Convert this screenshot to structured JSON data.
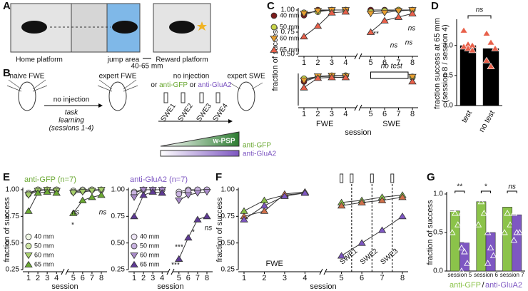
{
  "figure": {
    "panel_labels": [
      "A",
      "B",
      "C",
      "D",
      "E",
      "F",
      "G"
    ],
    "a": {
      "home": "Home platform",
      "jump": "jump area",
      "gap": "40-65 mm",
      "reward": "Reward platform"
    },
    "b": {
      "naive": "naive FWE",
      "expert": "expert FWE",
      "arrow_label": "no injection",
      "task_learning": [
        "task",
        "learning",
        "(sessions 1-4)"
      ],
      "injection": "no injection",
      "or1": "or ",
      "gfp": "anti-GFP",
      "or2": " or ",
      "glua2": "anti-GluA2",
      "expert_swe": "expert SWE",
      "swe": [
        "SWE1",
        "SWE2",
        "SWE3",
        "SWE4"
      ],
      "wpsp": "w-PSP",
      "bar_gfp": "anti-GFP",
      "bar_glua2": "anti-GluA2"
    }
  },
  "chart_data": [
    {
      "type": "line",
      "ylabel": "fraction of success",
      "legend": "outside left",
      "x": [
        1,
        2,
        3,
        4,
        5,
        6,
        7,
        8
      ],
      "xticks": [
        1,
        2,
        3,
        4,
        5,
        6,
        7,
        8
      ],
      "ylim": [
        0.5,
        1.0
      ],
      "yticks": [
        {
          "value": 0.5,
          "label": "0.50"
        },
        {
          "value": 0.75,
          "label": "0.75"
        },
        {
          "value": 1.0,
          "label": "1.00"
        }
      ],
      "series": [
        {
          "name": "40 mm",
          "color": "#7b1c1c",
          "marker": "circle",
          "values": [
            0.94,
            1.0,
            1.0,
            1.0,
            1.0,
            1.0,
            1.0,
            1.0
          ]
        },
        {
          "name": "50 mm",
          "color": "#c8d44a",
          "marker": "circle",
          "values": [
            0.97,
            0.98,
            1.0,
            1.0,
            0.98,
            0.99,
            1.0,
            1.0
          ]
        },
        {
          "name": "60 mm",
          "color": "#e8a030",
          "marker": "triangle-down",
          "values": [
            0.96,
            0.99,
            1.0,
            1.0,
            0.96,
            0.97,
            0.99,
            1.0
          ]
        },
        {
          "name": "65 mm",
          "color": "#e8604a",
          "marker": "triangle-up",
          "values": [
            0.7,
            0.82,
            0.97,
            0.98,
            0.75,
            0.88,
            0.92,
            0.96
          ]
        }
      ],
      "annotations": [
        "**",
        "ns",
        "ns",
        "ns"
      ]
    },
    {
      "type": "line",
      "xlabel": "session",
      "segment_labels": [
        "FWE",
        "SWE"
      ],
      "x": [
        1,
        2,
        3,
        4,
        5,
        6,
        7,
        8
      ],
      "xticks": [
        1,
        2,
        3,
        4,
        5,
        6,
        7,
        8
      ],
      "ylim": [
        0.5,
        1.0
      ],
      "series": [
        {
          "color": "#7b1c1c",
          "marker": "circle",
          "values": [
            0.9,
            0.98,
            0.99,
            1.0,
            null,
            null,
            null,
            0.97
          ]
        },
        {
          "color": "#c8d44a",
          "marker": "circle",
          "values": [
            0.95,
            0.98,
            1.0,
            1.0,
            null,
            null,
            null,
            0.98
          ]
        },
        {
          "color": "#e8a030",
          "marker": "triangle-down",
          "values": [
            0.92,
            0.99,
            1.0,
            0.99,
            null,
            null,
            null,
            0.98
          ]
        },
        {
          "color": "#e8604a",
          "marker": "triangle-up",
          "values": [
            0.8,
            0.96,
            0.97,
            0.97,
            null,
            null,
            null,
            0.9
          ]
        }
      ],
      "annotations": [
        "no test"
      ]
    },
    {
      "type": "bar",
      "ylabel": [
        "fraction success at 65 mm",
        "(session 8 / session 4)"
      ],
      "categories": [
        "test",
        "no test"
      ],
      "values": [
        1.0,
        0.95
      ],
      "color": "#000000",
      "points": [
        [
          1.25,
          1.02,
          1.0,
          0.98,
          0.95,
          0.92
        ],
        [
          1.2,
          1.05,
          0.95,
          0.75,
          0.65
        ]
      ],
      "point_color": "#e8604a",
      "ylim": [
        0,
        1.4
      ],
      "yticks": [
        {
          "value": 0,
          "label": "0.0"
        },
        {
          "value": 0.5,
          "label": "0.5"
        },
        {
          "value": 1.0,
          "label": "1.0"
        }
      ],
      "annotations": [
        "ns"
      ]
    },
    {
      "type": "line",
      "title": "anti-GFP (n=7)",
      "title_color": "#6aa832",
      "ylabel": "fraction of success",
      "xlabel": "session",
      "legend": "lower left",
      "x": [
        1,
        2,
        3,
        4,
        5,
        6,
        7,
        8
      ],
      "xticks": [
        1,
        2,
        3,
        4,
        5,
        6,
        7,
        8
      ],
      "ylim": [
        0.25,
        1.0
      ],
      "yticks": [
        {
          "value": 0.25,
          "label": "0.25"
        },
        {
          "value": 0.5,
          "label": "0.50"
        },
        {
          "value": 0.75,
          "label": "0.75"
        },
        {
          "value": 1.0,
          "label": "1.00"
        }
      ],
      "series": [
        {
          "name": "40 mm",
          "color": "#f1f8e6",
          "marker": "circle",
          "values": [
            0.97,
            1.0,
            1.0,
            1.0,
            0.99,
            1.0,
            1.0,
            1.0
          ]
        },
        {
          "name": "50 mm",
          "color": "#cfe6a6",
          "marker": "circle",
          "values": [
            0.96,
            1.0,
            1.0,
            1.0,
            0.98,
            0.99,
            1.0,
            1.0
          ]
        },
        {
          "name": "60 mm",
          "color": "#a6cf6a",
          "marker": "triangle-down",
          "values": [
            0.95,
            0.99,
            1.0,
            0.99,
            0.97,
            0.98,
            0.99,
            1.0
          ]
        },
        {
          "name": "65 mm",
          "color": "#6aa832",
          "marker": "triangle-up",
          "values": [
            0.8,
            0.97,
            0.98,
            0.97,
            0.78,
            0.9,
            0.93,
            0.95
          ]
        }
      ],
      "annotations": [
        "*",
        "ns",
        "ns"
      ]
    },
    {
      "type": "line",
      "title": "anti-GluA2 (n=7)",
      "title_color": "#7e57c2",
      "xlabel": "session",
      "legend": "lower left",
      "x": [
        1,
        2,
        3,
        4,
        5,
        6,
        7,
        8
      ],
      "xticks": [
        1,
        2,
        3,
        4,
        5,
        6,
        7,
        8
      ],
      "ylim": [
        0.25,
        1.0
      ],
      "yticks": [
        {
          "value": 0.25,
          "label": "0.25"
        },
        {
          "value": 0.5,
          "label": "0.50"
        },
        {
          "value": 0.75,
          "label": "0.75"
        },
        {
          "value": 1.0,
          "label": "1.00"
        }
      ],
      "series": [
        {
          "name": "40 mm",
          "color": "#ece4f4",
          "marker": "circle",
          "values": [
            0.98,
            1.0,
            1.0,
            1.0,
            0.98,
            1.0,
            1.0,
            1.0
          ]
        },
        {
          "name": "50 mm",
          "color": "#c9b3e0",
          "marker": "circle",
          "values": [
            0.97,
            1.0,
            1.0,
            1.0,
            0.96,
            0.99,
            1.0,
            1.0
          ]
        },
        {
          "name": "60 mm",
          "color": "#a98bc9",
          "marker": "triangle-down",
          "values": [
            0.93,
            1.0,
            1.0,
            1.0,
            0.9,
            0.95,
            0.97,
            0.98
          ]
        },
        {
          "name": "65 mm",
          "color": "#5e3a94",
          "marker": "triangle-up",
          "values": [
            0.75,
            0.95,
            0.98,
            0.97,
            0.35,
            0.55,
            0.72,
            0.75
          ]
        }
      ],
      "annotations": [
        "***",
        "***",
        "*",
        "ns"
      ]
    },
    {
      "type": "line",
      "ylabel": "fraction of success",
      "xlabel": "session",
      "segment_labels": [
        "FWE"
      ],
      "swe_labels": [
        "SWE1",
        "SWE2",
        "SWE3"
      ],
      "x": [
        1,
        2,
        3,
        4,
        5,
        6,
        7,
        8
      ],
      "xticks": [
        1,
        2,
        3,
        4,
        5,
        6,
        7,
        8
      ],
      "ylim": [
        0.25,
        1.0
      ],
      "yticks": [
        {
          "value": 0.25,
          "label": "0.25"
        },
        {
          "value": 0.5,
          "label": "0.50"
        },
        {
          "value": 0.75,
          "label": "0.75"
        },
        {
          "value": 1.0,
          "label": "1.00"
        }
      ],
      "series": [
        {
          "color": "#8bc34a",
          "marker": "triangle-up",
          "values": [
            0.8,
            0.9,
            0.95,
            0.97,
            0.88,
            0.9,
            0.93,
            0.95
          ]
        },
        {
          "color": "#d0704a",
          "marker": "triangle-up",
          "values": [
            0.75,
            0.8,
            0.96,
            0.98,
            0.85,
            0.88,
            0.9,
            0.93
          ]
        },
        {
          "color": "#7e57c2",
          "marker": "triangle-up",
          "values": [
            0.72,
            0.85,
            0.94,
            0.97,
            0.38,
            0.5,
            0.62,
            0.75
          ]
        }
      ]
    },
    {
      "type": "grouped_bar",
      "ylabel": "fraction of success",
      "categories": [
        "session 5",
        "session 6",
        "session 7"
      ],
      "ylim": [
        0,
        1.0
      ],
      "yticks": [
        {
          "value": 0,
          "label": "0.0"
        },
        {
          "value": 0.5,
          "label": "0.5"
        },
        {
          "value": 1.0,
          "label": "1.0"
        }
      ],
      "series": [
        {
          "name": "anti-GFP",
          "color": "#8bc34a",
          "values": [
            0.78,
            0.9,
            0.83
          ],
          "points": [
            [
              1.0,
              1.0,
              0.9,
              0.8,
              0.75,
              0.6,
              0.5
            ],
            [
              1.0,
              1.0,
              1.0,
              1.0,
              0.9,
              0.75,
              0.6
            ],
            [
              1.0,
              1.0,
              1.0,
              1.0,
              0.75,
              0.6,
              0.5
            ]
          ]
        },
        {
          "name": "anti-GluA2",
          "color": "#7e57c2",
          "values": [
            0.37,
            0.5,
            0.73
          ],
          "points": [
            [
              0.75,
              0.5,
              0.4,
              0.3,
              0.25,
              0.1,
              0.0
            ],
            [
              1.0,
              0.75,
              0.6,
              0.5,
              0.3,
              0.2,
              0.1
            ],
            [
              1.0,
              1.0,
              1.0,
              0.75,
              0.5,
              0.5,
              0.4
            ]
          ]
        }
      ],
      "legend_separator": "/",
      "annotations": [
        "**",
        "*",
        "ns"
      ]
    }
  ]
}
